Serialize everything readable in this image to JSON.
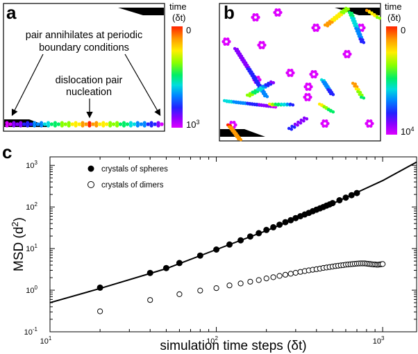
{
  "panel_a": {
    "letter": "a",
    "annotation_top_1": "pair annihilates at periodic",
    "annotation_top_2": "boundary conditions",
    "annotation_mid_1": "dislocation pair",
    "annotation_mid_2": "nucleation",
    "colorbar": {
      "title_1": "time",
      "title_2": "(δt)",
      "top": "0",
      "bottom_base": "10",
      "bottom_exp": "3"
    }
  },
  "panel_b": {
    "letter": "b",
    "colorbar": {
      "title_1": "time",
      "title_2": "(δt)",
      "top": "0",
      "bottom_base": "10",
      "bottom_exp": "4"
    }
  },
  "panel_c": {
    "letter": "c"
  },
  "chart_data": {
    "type": "scatter",
    "xlabel": "simulation time steps (δt)",
    "ylabel_main": "MSD (d",
    "ylabel_exp": "2",
    "ylabel_tail": ")",
    "x_scale": "log",
    "y_scale": "log",
    "xlim": [
      10,
      1600
    ],
    "ylim": [
      0.1,
      1600
    ],
    "x_ticks": [
      {
        "value": 10,
        "base": "10",
        "exp": "1"
      },
      {
        "value": 100,
        "base": "10",
        "exp": "2"
      },
      {
        "value": 1000,
        "base": "10",
        "exp": "3"
      }
    ],
    "y_ticks": [
      {
        "value": 0.1,
        "base": "10",
        "exp": "-1"
      },
      {
        "value": 1,
        "base": "10",
        "exp": "0"
      },
      {
        "value": 10,
        "base": "10",
        "exp": "1"
      },
      {
        "value": 100,
        "base": "10",
        "exp": "2"
      },
      {
        "value": 1000,
        "base": "10",
        "exp": "3"
      }
    ],
    "legend_position": "top-left",
    "series": [
      {
        "name": "crystals of spheres",
        "marker": "filled-circle",
        "x": [
          20,
          40,
          50,
          60,
          80,
          100,
          120,
          140,
          160,
          180,
          200,
          220,
          240,
          260,
          280,
          300,
          320,
          340,
          360,
          380,
          400,
          420,
          440,
          460,
          480,
          500,
          550,
          600,
          650,
          700
        ],
        "y": [
          1.15,
          2.6,
          3.4,
          4.5,
          6.8,
          9.5,
          12.5,
          15.8,
          19.5,
          23.5,
          28,
          32.5,
          37.5,
          43,
          48,
          54,
          60,
          66,
          72,
          79,
          86,
          93,
          100,
          108,
          115,
          124,
          145,
          168,
          192,
          216
        ]
      },
      {
        "name": "crystals of dimers",
        "marker": "open-circle",
        "x": [
          20,
          40,
          60,
          80,
          100,
          120,
          140,
          160,
          180,
          200,
          220,
          240,
          260,
          280,
          300,
          320,
          340,
          360,
          380,
          400,
          420,
          440,
          460,
          480,
          500,
          520,
          540,
          560,
          580,
          600,
          620,
          640,
          660,
          680,
          700,
          720,
          740,
          760,
          780,
          800,
          820,
          840,
          860,
          880,
          900,
          920,
          940,
          960,
          980,
          1000
        ],
        "y": [
          0.31,
          0.58,
          0.8,
          0.98,
          1.12,
          1.3,
          1.45,
          1.6,
          1.75,
          1.92,
          2.05,
          2.2,
          2.35,
          2.48,
          2.62,
          2.75,
          2.88,
          3.0,
          3.1,
          3.2,
          3.3,
          3.42,
          3.5,
          3.6,
          3.7,
          3.8,
          3.88,
          3.95,
          4.0,
          4.1,
          4.15,
          4.2,
          4.25,
          4.3,
          4.35,
          4.38,
          4.4,
          4.4,
          4.4,
          4.35,
          4.3,
          4.25,
          4.2,
          4.15,
          4.15,
          4.1,
          4.1,
          4.15,
          4.2,
          4.25
        ]
      }
    ],
    "fit_line": {
      "style": "solid",
      "x": [
        10,
        20,
        50,
        100,
        200,
        500,
        1000,
        1600
      ],
      "y": [
        0.5,
        1.1,
        3.3,
        9.5,
        27,
        120,
        430,
        1200
      ]
    }
  },
  "colors": {
    "colorbar_stops": [
      "#ff2200",
      "#ff9900",
      "#ffee00",
      "#88ff00",
      "#00ee66",
      "#00dddd",
      "#0088ff",
      "#2222ff",
      "#8800ff",
      "#dd00ff"
    ]
  }
}
